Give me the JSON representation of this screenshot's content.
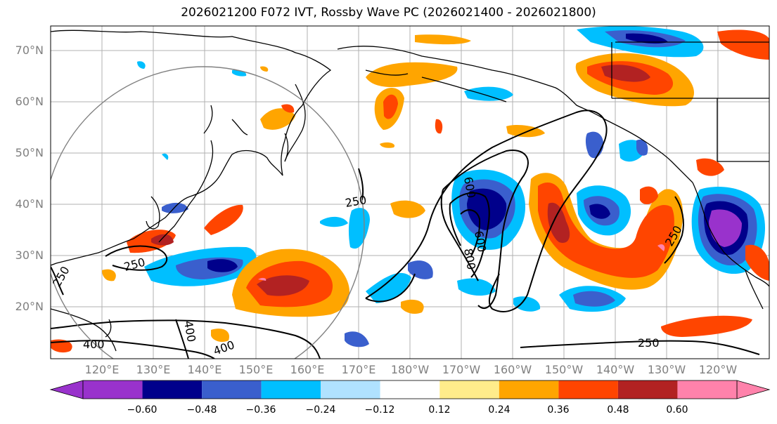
{
  "title": "2026021200 F072 IVT, Rossby Wave PC (2026021400 - 2026021800)",
  "map": {
    "lat_labels": [
      "70°N",
      "60°N",
      "50°N",
      "40°N",
      "30°N",
      "20°N"
    ],
    "lon_labels": [
      "120°E",
      "130°E",
      "140°E",
      "150°E",
      "160°E",
      "170°E",
      "180°W",
      "170°W",
      "160°W",
      "150°W",
      "140°W",
      "130°W",
      "120°W"
    ],
    "contour_labels": [
      "250",
      "250",
      "250",
      "250",
      "250",
      "400",
      "400",
      "400",
      "600",
      "800",
      "600"
    ]
  },
  "colorbar": {
    "colors": [
      "#9932cc",
      "#00008b",
      "#3a5fcd",
      "#00bfff",
      "#b0e2ff",
      "#ffffff",
      "#ffec8b",
      "#ffa500",
      "#ff4500",
      "#b22222",
      "#ff82ab"
    ],
    "tick_labels": [
      "−0.60",
      "−0.48",
      "−0.36",
      "−0.24",
      "−0.12",
      "0.12",
      "0.24",
      "0.36",
      "0.48",
      "0.60"
    ]
  }
}
